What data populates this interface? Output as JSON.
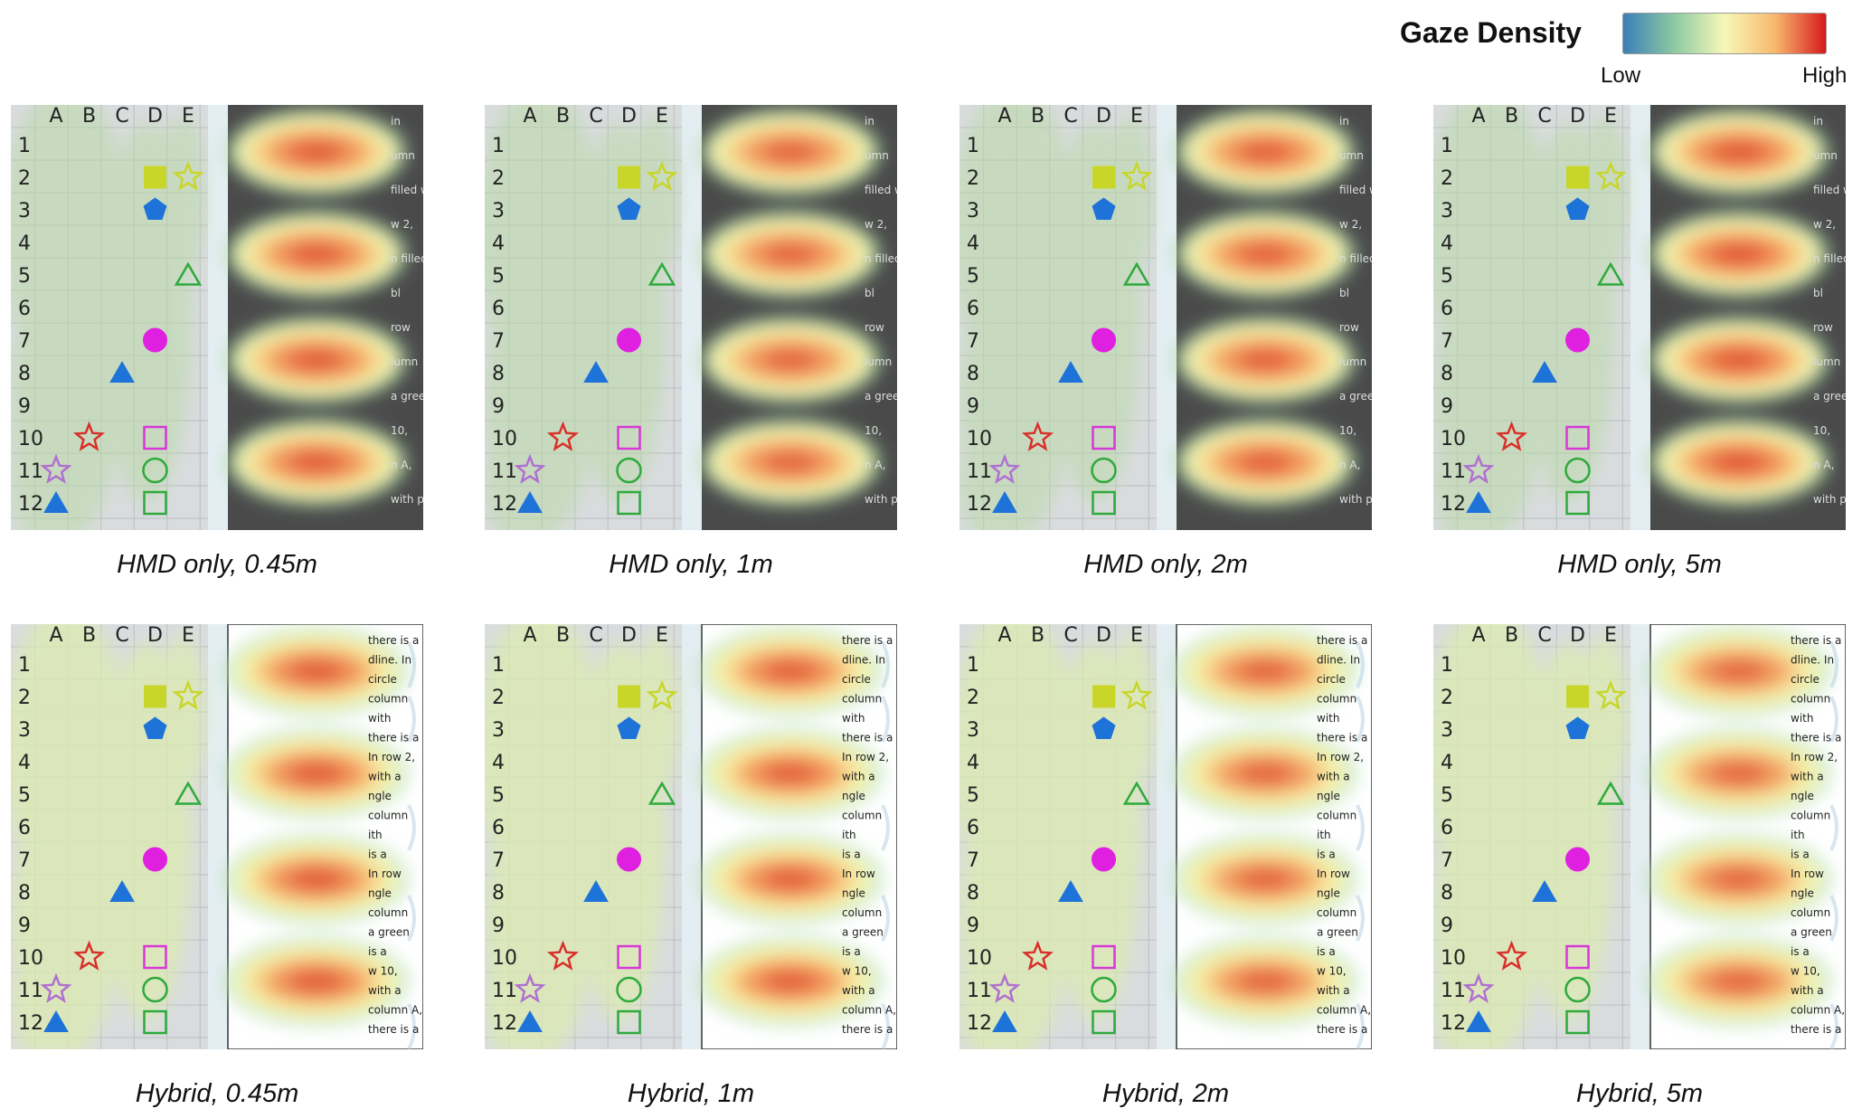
{
  "legend": {
    "title": "Gaze Density",
    "low_label": "Low",
    "high_label": "High",
    "colors": [
      "#3b7fb8",
      "#8cc9a2",
      "#f7f8b8",
      "#f7b86e",
      "#d7191c"
    ]
  },
  "grid": {
    "columns": [
      "A",
      "B",
      "C",
      "D",
      "E"
    ],
    "rows": [
      "1",
      "2",
      "3",
      "4",
      "5",
      "6",
      "7",
      "8",
      "9",
      "10",
      "11",
      "12"
    ]
  },
  "symbols": [
    {
      "shape": "square",
      "fill": true,
      "color": "#c8d62a",
      "col": "D",
      "row": "2"
    },
    {
      "shape": "star",
      "fill": false,
      "color": "#c8d62a",
      "col": "E",
      "row": "2"
    },
    {
      "shape": "pentagon",
      "fill": true,
      "color": "#1e73d8",
      "col": "D",
      "row": "3"
    },
    {
      "shape": "triangle",
      "fill": false,
      "color": "#2eaa3c",
      "col": "E",
      "row": "5"
    },
    {
      "shape": "circle",
      "fill": true,
      "color": "#e020e0",
      "col": "D",
      "row": "7"
    },
    {
      "shape": "triangle",
      "fill": true,
      "color": "#1e73d8",
      "col": "C",
      "row": "8"
    },
    {
      "shape": "star",
      "fill": false,
      "color": "#d8302a",
      "col": "B",
      "row": "10"
    },
    {
      "shape": "square",
      "fill": false,
      "color": "#d838d8",
      "col": "D",
      "row": "10"
    },
    {
      "shape": "star",
      "fill": false,
      "color": "#b070d0",
      "col": "A",
      "row": "11"
    },
    {
      "shape": "circle",
      "fill": false,
      "color": "#2eaa3c",
      "col": "D",
      "row": "11"
    },
    {
      "shape": "triangle",
      "fill": true,
      "color": "#1e73d8",
      "col": "A",
      "row": "12"
    },
    {
      "shape": "square",
      "fill": false,
      "color": "#2eaa3c",
      "col": "D",
      "row": "12"
    }
  ],
  "text_fragments": {
    "hmd": [
      "in",
      "umn",
      "filled with",
      "w 2,",
      "n filled with",
      "bl",
      "row",
      "lumn",
      "a green",
      "10,",
      "n A,",
      "with pink."
    ],
    "hybrid": [
      "there is a",
      "dline. In",
      "circle",
      "column",
      "with",
      "there is a",
      "In row 2,",
      "with a",
      "ngle",
      "column",
      "ith",
      "is a",
      "In row",
      "ngle",
      "column",
      "a green",
      "is a",
      "w 10,",
      "with a",
      "column A,",
      "there is a star filled with pink."
    ]
  },
  "panels": [
    {
      "caption": "HMD only, 0.45m",
      "mode": "hmd",
      "density": 1.0
    },
    {
      "caption": "HMD only, 1m",
      "mode": "hmd",
      "density": 0.9
    },
    {
      "caption": "HMD only, 2m",
      "mode": "hmd",
      "density": 0.95
    },
    {
      "caption": "HMD only, 5m",
      "mode": "hmd",
      "density": 1.05
    },
    {
      "caption": "Hybrid, 0.45m",
      "mode": "hybrid",
      "density": 1.0
    },
    {
      "caption": "Hybrid, 1m",
      "mode": "hybrid",
      "density": 0.95
    },
    {
      "caption": "Hybrid, 2m",
      "mode": "hybrid",
      "density": 0.9
    },
    {
      "caption": "Hybrid, 5m",
      "mode": "hybrid",
      "density": 0.88
    }
  ]
}
